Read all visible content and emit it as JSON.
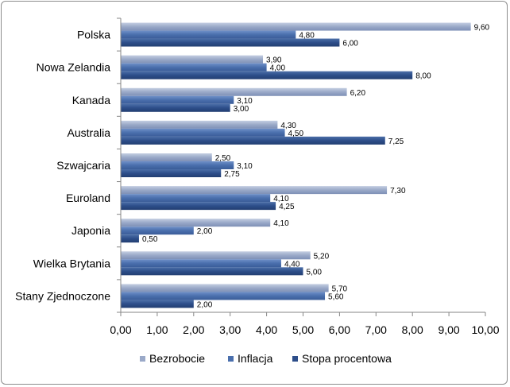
{
  "chart_data": {
    "type": "bar",
    "orientation": "horizontal",
    "categories": [
      "Polska",
      "Nowa Zelandia",
      "Kanada",
      "Australia",
      "Szwajcaria",
      "Euroland",
      "Japonia",
      "Wielka Brytania",
      "Stany Zjednoczone"
    ],
    "series": [
      {
        "name": "Bezrobocie",
        "color": "#9aa9c8",
        "values": [
          9.6,
          3.9,
          6.2,
          4.3,
          2.5,
          7.3,
          4.1,
          5.2,
          5.7
        ],
        "labels": [
          "9,60",
          "3,90",
          "6,20",
          "4,30",
          "2,50",
          "7,30",
          "4,10",
          "5,20",
          "5,70"
        ]
      },
      {
        "name": "Inflacja",
        "color": "#4a6fad",
        "values": [
          4.8,
          4.0,
          3.1,
          4.5,
          3.1,
          4.1,
          2.0,
          4.4,
          5.6
        ],
        "labels": [
          "4,80",
          "4,00",
          "3,10",
          "4,50",
          "3,10",
          "4,10",
          "2,00",
          "4,40",
          "5,60"
        ]
      },
      {
        "name": "Stopa procentowa",
        "color": "#2d4e8a",
        "values": [
          6.0,
          8.0,
          3.0,
          7.25,
          2.75,
          4.25,
          0.5,
          5.0,
          2.0
        ],
        "labels": [
          "6,00",
          "8,00",
          "3,00",
          "7,25",
          "2,75",
          "4,25",
          "0,50",
          "5,00",
          "2,00"
        ]
      }
    ],
    "xlim": [
      0,
      10
    ],
    "xticks": [
      0,
      1,
      2,
      3,
      4,
      5,
      6,
      7,
      8,
      9,
      10
    ],
    "xtick_labels": [
      "0,00",
      "1,00",
      "2,00",
      "3,00",
      "4,00",
      "5,00",
      "6,00",
      "7,00",
      "8,00",
      "9,00",
      "10,00"
    ],
    "grid": false,
    "legend_position": "bottom"
  }
}
